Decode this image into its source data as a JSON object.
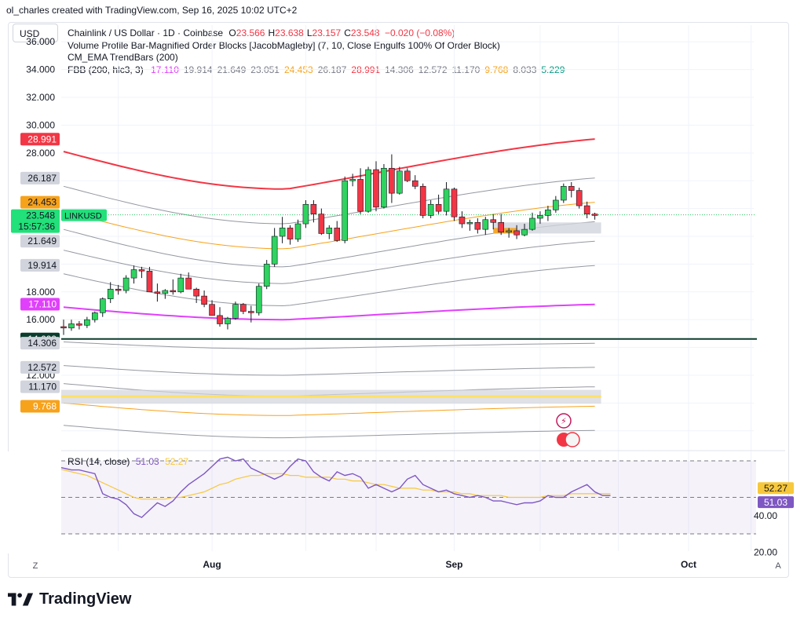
{
  "byline": "ol_charles created with TradingView.com, Sep 16, 2025 10:02 UTC+2",
  "currency_button": "USD",
  "legend": {
    "title": "Chainlink / US Dollar · 1D · Coinbase",
    "ohlc": [
      {
        "k": "O",
        "v": "23.566"
      },
      {
        "k": "H",
        "v": "23.638"
      },
      {
        "k": "L",
        "v": "23.157"
      },
      {
        "k": "C",
        "v": "23.548"
      }
    ],
    "change": "−0.020 (−0.08%)",
    "indicator1": "Volume Profile Bar-Magnified Order Blocks [JacobMagleby] (7, 10, Close Engulfs 100% Of Order Block)",
    "indicator2": "CM_EMA TrendBars (200)",
    "fbb_name": "FBB (200, hlc3, 3)",
    "fbb_values": [
      {
        "v": "17.110",
        "color": "#e040fb"
      },
      {
        "v": "19.914",
        "color": "#787b86"
      },
      {
        "v": "21.649",
        "color": "#787b86"
      },
      {
        "v": "23.051",
        "color": "#787b86"
      },
      {
        "v": "24.453",
        "color": "#f7a21b"
      },
      {
        "v": "26.187",
        "color": "#787b86"
      },
      {
        "v": "28.991",
        "color": "#f23645"
      },
      {
        "v": "14.306",
        "color": "#787b86"
      },
      {
        "v": "12.572",
        "color": "#787b86"
      },
      {
        "v": "11.170",
        "color": "#787b86"
      },
      {
        "v": "9.768",
        "color": "#f7a21b"
      },
      {
        "v": "8.033",
        "color": "#787b86"
      },
      {
        "v": "5.229",
        "color": "#089981"
      }
    ]
  },
  "rsi_label": {
    "name": "RSI (14, close)",
    "v1": "51.03",
    "v2": "52.27"
  },
  "footer": {
    "brand": "TradingView"
  },
  "axis_buttons": {
    "left": "Z",
    "right": "A"
  },
  "chart_data": [
    {
      "type": "candlestick",
      "symbol": "LINKUSD",
      "timeframe": "1D",
      "ylim": [
        6,
        37
      ],
      "y_ticks": [
        "36.000",
        "34.000",
        "32.000",
        "30.000",
        "28.000",
        "18.000",
        "16.000",
        "12.000"
      ],
      "x_labels": [
        {
          "label": "Aug",
          "idx": 19
        },
        {
          "label": "Sep",
          "idx": 50
        },
        {
          "label": "Oct",
          "idx": 80
        }
      ],
      "candles": [
        [
          15.5,
          16.0,
          14.9,
          15.4
        ],
        [
          15.4,
          16.0,
          15.2,
          15.7
        ],
        [
          15.7,
          15.9,
          15.3,
          15.6
        ],
        [
          15.6,
          16.2,
          15.4,
          16.0
        ],
        [
          16.0,
          16.6,
          15.8,
          16.5
        ],
        [
          16.5,
          17.6,
          16.2,
          17.5
        ],
        [
          17.5,
          18.7,
          17.2,
          18.2
        ],
        [
          18.2,
          18.5,
          17.8,
          18.1
        ],
        [
          18.1,
          19.2,
          17.9,
          19.0
        ],
        [
          19.0,
          19.9,
          18.6,
          19.6
        ],
        [
          19.6,
          19.8,
          19.0,
          19.5
        ],
        [
          19.5,
          19.8,
          18.1,
          18.0
        ],
        [
          18.0,
          18.6,
          17.3,
          17.9
        ],
        [
          17.9,
          18.2,
          17.5,
          18.1
        ],
        [
          18.1,
          18.9,
          17.8,
          18.0
        ],
        [
          18.0,
          19.3,
          17.9,
          19.0
        ],
        [
          19.0,
          19.4,
          18.2,
          18.2
        ],
        [
          18.2,
          18.3,
          17.2,
          17.7
        ],
        [
          17.7,
          18.1,
          16.9,
          17.1
        ],
        [
          17.1,
          17.4,
          16.5,
          16.3
        ],
        [
          16.3,
          16.9,
          15.5,
          15.7
        ],
        [
          15.7,
          16.2,
          15.3,
          16.1
        ],
        [
          16.1,
          17.3,
          16.0,
          17.1
        ],
        [
          17.1,
          17.2,
          16.4,
          16.6
        ],
        [
          16.6,
          17.0,
          15.8,
          16.5
        ],
        [
          16.5,
          18.6,
          16.3,
          18.4
        ],
        [
          18.4,
          20.3,
          18.2,
          20.0
        ],
        [
          20.0,
          22.6,
          19.8,
          22.0
        ],
        [
          22.0,
          23.4,
          21.5,
          22.6
        ],
        [
          22.6,
          22.8,
          21.4,
          21.8
        ],
        [
          21.8,
          23.2,
          21.6,
          22.9
        ],
        [
          22.9,
          24.6,
          22.6,
          24.3
        ],
        [
          24.3,
          24.6,
          23.0,
          23.6
        ],
        [
          23.6,
          24.0,
          22.1,
          22.2
        ],
        [
          22.2,
          22.8,
          21.8,
          22.6
        ],
        [
          22.6,
          23.1,
          21.6,
          21.7
        ],
        [
          21.7,
          26.3,
          21.5,
          26.0
        ],
        [
          26.0,
          26.5,
          25.6,
          26.1
        ],
        [
          26.1,
          26.9,
          23.6,
          23.8
        ],
        [
          23.8,
          27.0,
          23.7,
          26.8
        ],
        [
          26.8,
          27.4,
          23.8,
          24.1
        ],
        [
          24.1,
          27.2,
          24.0,
          26.9
        ],
        [
          26.9,
          27.9,
          24.4,
          25.1
        ],
        [
          25.1,
          27.0,
          25.0,
          26.7
        ],
        [
          26.7,
          26.9,
          25.9,
          26.0
        ],
        [
          26.0,
          26.4,
          25.4,
          25.6
        ],
        [
          25.6,
          25.8,
          23.3,
          23.5
        ],
        [
          23.5,
          24.6,
          23.3,
          24.3
        ],
        [
          24.3,
          25.0,
          23.6,
          23.8
        ],
        [
          23.8,
          25.9,
          23.5,
          25.4
        ],
        [
          25.4,
          25.5,
          23.1,
          23.4
        ],
        [
          23.4,
          23.8,
          22.6,
          22.9
        ],
        [
          22.9,
          23.2,
          22.4,
          23.0
        ],
        [
          23.0,
          23.3,
          22.2,
          22.5
        ],
        [
          22.5,
          23.4,
          22.1,
          23.2
        ],
        [
          23.2,
          23.6,
          22.5,
          23.0
        ],
        [
          23.0,
          23.6,
          22.1,
          22.3
        ],
        [
          22.3,
          22.6,
          21.9,
          22.4
        ],
        [
          22.4,
          22.8,
          21.8,
          22.1
        ],
        [
          22.1,
          22.9,
          22.0,
          22.5
        ],
        [
          22.5,
          23.7,
          22.4,
          23.3
        ],
        [
          23.3,
          23.8,
          22.9,
          23.5
        ],
        [
          23.5,
          24.2,
          23.1,
          23.9
        ],
        [
          23.9,
          24.9,
          23.7,
          24.6
        ],
        [
          24.6,
          25.8,
          24.4,
          25.6
        ],
        [
          25.6,
          25.9,
          24.8,
          25.3
        ],
        [
          25.3,
          25.5,
          24.0,
          24.2
        ],
        [
          24.2,
          24.5,
          23.3,
          23.6
        ],
        [
          23.6,
          23.7,
          23.2,
          23.5
        ]
      ],
      "fbb_bands": {
        "upper3_red": {
          "start": 28.1,
          "min": 25.4,
          "end": 29.0,
          "color": "#f23645"
        },
        "upper2": {
          "start": 25.6,
          "min": 22.9,
          "end": 26.2
        },
        "upper1_orange": {
          "start": 23.8,
          "min": 21.1,
          "end": 24.45,
          "color": "#f7a21b"
        },
        "upper0": {
          "start": 22.5,
          "min": 19.8,
          "end": 23.05
        },
        "lower0": {
          "start": 21.0,
          "min": 18.6,
          "end": 21.65
        },
        "lower1": {
          "start": 19.3,
          "min": 17.0,
          "end": 19.9
        },
        "basis_magenta": {
          "start": 16.9,
          "min": 16.0,
          "end": 17.1,
          "color": "#e040fb"
        }
      },
      "price_labels": [
        {
          "text": "28.991",
          "value": 28.991,
          "bg": "#f23645",
          "fg": "#ffffff"
        },
        {
          "text": "26.187",
          "value": 26.187,
          "bg": "#d1d4dc",
          "fg": "#131722"
        },
        {
          "text": "24.453",
          "value": 24.453,
          "bg": "#f7a21b",
          "fg": "#131722"
        },
        {
          "text": "23.051",
          "value": 23.051,
          "bg": "#d1d4dc",
          "fg": "#131722"
        },
        {
          "text": "21.649",
          "value": 21.649,
          "bg": "#d1d4dc",
          "fg": "#131722"
        },
        {
          "text": "19.914",
          "value": 19.914,
          "bg": "#d1d4dc",
          "fg": "#131722"
        },
        {
          "text": "17.110",
          "value": 17.11,
          "bg": "#e040fb",
          "fg": "#ffffff"
        },
        {
          "text": "14.609",
          "value": 14.609,
          "bg": "#0b3d2e",
          "fg": "#ffffff"
        },
        {
          "text": "14.306",
          "value": 14.306,
          "bg": "#d1d4dc",
          "fg": "#131722"
        },
        {
          "text": "12.572",
          "value": 12.572,
          "bg": "#d1d4dc",
          "fg": "#131722"
        },
        {
          "text": "11.170",
          "value": 11.17,
          "bg": "#d1d4dc",
          "fg": "#131722"
        },
        {
          "text": "9.768",
          "value": 9.768,
          "bg": "#f7a21b",
          "fg": "#ffffff"
        }
      ],
      "last_price": {
        "price": "23.548",
        "timer": "15:57:36",
        "symbol_tag": "LINKUSD",
        "value": 23.548,
        "color": "#22e07a"
      },
      "horizontal_line": {
        "value": 14.609,
        "color": "#0b3d2e"
      }
    },
    {
      "type": "line",
      "name": "RSI (14, close)",
      "ylim": [
        20,
        75
      ],
      "y_ticks": [
        "40.00",
        "20.00"
      ],
      "levels": [
        70,
        50,
        30
      ],
      "rsi": [
        62,
        66,
        68,
        70,
        72,
        73,
        72,
        70,
        71,
        70,
        68,
        67,
        66,
        65,
        65,
        64,
        63,
        52,
        50,
        49,
        46,
        41,
        39,
        43,
        47,
        45,
        48,
        53,
        57,
        60,
        63,
        67,
        71,
        72,
        70,
        71,
        66,
        64,
        62,
        60,
        62,
        67,
        71,
        70,
        64,
        61,
        59,
        64,
        62,
        63,
        61,
        55,
        57,
        55,
        53,
        55,
        60,
        62,
        57,
        55,
        53,
        54,
        52,
        51,
        50,
        51,
        50,
        48,
        48,
        47,
        46,
        47,
        47,
        48,
        51,
        50,
        50,
        53,
        55,
        57,
        53,
        51,
        51
      ],
      "rsi_ma": [
        60,
        61,
        62,
        63,
        64,
        65,
        66,
        66,
        67,
        67,
        67,
        66,
        65,
        64,
        63,
        62,
        60,
        58,
        56,
        54,
        52,
        50,
        49,
        49,
        49,
        49,
        50,
        50,
        51,
        52,
        53,
        55,
        57,
        58,
        60,
        61,
        62,
        62,
        63,
        63,
        63,
        62,
        62,
        61,
        61,
        61,
        61,
        60,
        60,
        59,
        59,
        58,
        57,
        57,
        56,
        55,
        55,
        55,
        54,
        54,
        53,
        53,
        53,
        52,
        52,
        51,
        51,
        51,
        51,
        50,
        50,
        50,
        50,
        50,
        51,
        51,
        51,
        52,
        52,
        52,
        52,
        52,
        52
      ],
      "rsi_value": "51.03",
      "rsi_ma_value": "52.27"
    }
  ]
}
